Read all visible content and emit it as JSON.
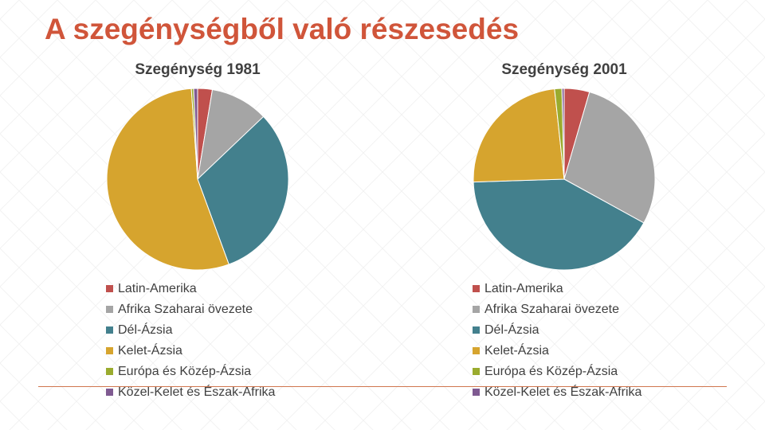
{
  "slide": {
    "title": "A szegénységből való részesedés",
    "accent_color": "#d0553a"
  },
  "chart_data": [
    {
      "type": "pie",
      "title": "Szegénység 1981",
      "categories": [
        "Latin-Amerika",
        "Afrika Szaharai övezete",
        "Dél-Ázsia",
        "Kelet-Ázsia",
        "Európa és Közép-Ázsia",
        "Közel-Kelet és Észak-Afrika"
      ],
      "values": [
        2.6,
        10.3,
        31.5,
        54.5,
        0.4,
        0.7
      ],
      "colors": [
        "#c0504d",
        "#a5a5a5",
        "#43808d",
        "#d6a42e",
        "#9aab2e",
        "#7f5a91"
      ],
      "legend": "bottom"
    },
    {
      "type": "pie",
      "title": "Szegénység 2001",
      "categories": [
        "Latin-Amerika",
        "Afrika Szaharai övezete",
        "Dél-Ázsia",
        "Kelet-Ázsia",
        "Európa és Közép-Ázsia",
        "Közel-Kelet és Észak-Afrika"
      ],
      "values": [
        4.5,
        28.5,
        41.5,
        23.8,
        1.3,
        0.4
      ],
      "colors": [
        "#c0504d",
        "#a5a5a5",
        "#43808d",
        "#d6a42e",
        "#9aab2e",
        "#7f5a91"
      ],
      "legend": "bottom"
    }
  ]
}
